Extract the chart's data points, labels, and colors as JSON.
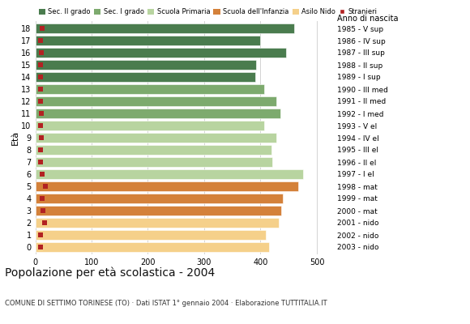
{
  "ages": [
    18,
    17,
    16,
    15,
    14,
    13,
    12,
    11,
    10,
    9,
    8,
    7,
    6,
    5,
    4,
    3,
    2,
    1,
    0
  ],
  "values": [
    460,
    400,
    445,
    392,
    390,
    407,
    428,
    435,
    407,
    428,
    420,
    421,
    475,
    467,
    440,
    437,
    433,
    410,
    415
  ],
  "stranieri": [
    12,
    10,
    11,
    9,
    9,
    10,
    10,
    11,
    9,
    11,
    10,
    10,
    12,
    18,
    12,
    14,
    16,
    10,
    10
  ],
  "bar_colors": [
    "#4a7c4e",
    "#4a7c4e",
    "#4a7c4e",
    "#4a7c4e",
    "#4a7c4e",
    "#7daa6e",
    "#7daa6e",
    "#7daa6e",
    "#b8d4a0",
    "#b8d4a0",
    "#b8d4a0",
    "#b8d4a0",
    "#b8d4a0",
    "#d4813a",
    "#d4813a",
    "#d4813a",
    "#f5d08a",
    "#f5d08a",
    "#f5d08a"
  ],
  "right_labels": [
    "1985 - V sup",
    "1986 - IV sup",
    "1987 - III sup",
    "1988 - II sup",
    "1989 - I sup",
    "1990 - III med",
    "1991 - II med",
    "1992 - I med",
    "1993 - V el",
    "1994 - IV el",
    "1995 - III el",
    "1996 - II el",
    "1997 - I el",
    "1998 - mat",
    "1999 - mat",
    "2000 - mat",
    "2001 - nido",
    "2002 - nido",
    "2003 - nido"
  ],
  "legend_labels": [
    "Sec. II grado",
    "Sec. I grado",
    "Scuola Primaria",
    "Scuola dell'Infanzia",
    "Asilo Nido",
    "Stranieri"
  ],
  "legend_colors": [
    "#4a7c4e",
    "#7daa6e",
    "#b8d4a0",
    "#d4813a",
    "#f5d08a",
    "#b22222"
  ],
  "ylabel": "Età",
  "title": "Popolazione per età scolastica - 2004",
  "subtitle": "COMUNE DI SETTIMO TORINESE (TO) · Dati ISTAT 1° gennaio 2004 · Elaborazione TUTTITALIA.IT",
  "xlim": [
    0,
    530
  ],
  "xticks": [
    0,
    100,
    200,
    300,
    400,
    500
  ],
  "anno_nascita_label": "Anno di nascita",
  "grid_color": "#cccccc",
  "bar_height": 0.82,
  "stranieri_color": "#b22222",
  "stranieri_size": 5
}
